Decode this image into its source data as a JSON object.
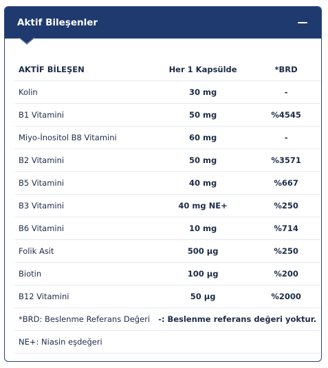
{
  "panel": {
    "title": "Aktif Bileşenler",
    "collapse_icon": "minus-icon"
  },
  "table": {
    "headers": [
      "AKTİF BİLEŞEN",
      "Her 1 Kapsülde",
      "*BRD"
    ],
    "rows": [
      [
        "Kolin",
        "30 mg",
        "-"
      ],
      [
        "B1 Vitamini",
        "50 mg",
        "%4545"
      ],
      [
        "Miyo-İnositol B8 Vitamini",
        "60 mg",
        "-"
      ],
      [
        "B2 Vitamini",
        "50 mg",
        "%3571"
      ],
      [
        "B5 Vitamini",
        "40 mg",
        "%667"
      ],
      [
        "B3 Vitamini",
        "40 mg NE+",
        "%250"
      ],
      [
        "B6 Vitamini",
        "10 mg",
        "%714"
      ],
      [
        "Folik Asit",
        "500 µg",
        "%250"
      ],
      [
        "Biotin",
        "100 µg",
        "%200"
      ],
      [
        "B12 Vitamini",
        "50 µg",
        "%2000"
      ]
    ],
    "notes": {
      "brd": "*BRD: Beslenme Referans Değeri",
      "dash": "-: Beslenme referans değeri yoktur.",
      "ne": "NE+: Niasin eşdeğeri"
    }
  },
  "colors": {
    "header_bg": "#1f3a6f",
    "text": "#1c2b47",
    "divider": "#e6e9ef"
  }
}
